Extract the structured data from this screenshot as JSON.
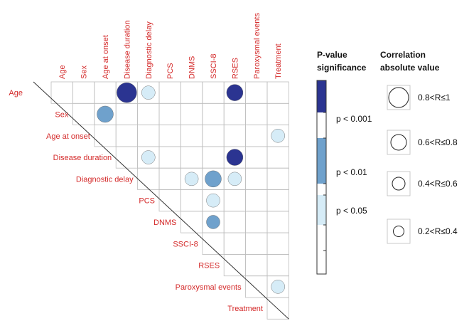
{
  "chart_data": {
    "type": "heatmap",
    "variables": [
      "Age",
      "Sex",
      "Age at onset",
      "Disease duration",
      "Diagnostic delay",
      "PCS",
      "DNMS",
      "SSCI-8",
      "RSES",
      "Paroxysmal events",
      "Treatment"
    ],
    "cells": [
      {
        "row": "Age",
        "col": "Disease duration",
        "significance": "p < 0.001",
        "correlation": "0.8<R≤1"
      },
      {
        "row": "Age",
        "col": "Diagnostic delay",
        "significance": "p < 0.05",
        "correlation": "0.4<R≤0.6"
      },
      {
        "row": "Age",
        "col": "RSES",
        "significance": "p < 0.001",
        "correlation": "0.6<R≤0.8"
      },
      {
        "row": "Sex",
        "col": "Age at onset",
        "significance": "p < 0.01",
        "correlation": "0.6<R≤0.8"
      },
      {
        "row": "Age at onset",
        "col": "Treatment",
        "significance": "p < 0.05",
        "correlation": "0.4<R≤0.6"
      },
      {
        "row": "Disease duration",
        "col": "Diagnostic delay",
        "significance": "p < 0.05",
        "correlation": "0.4<R≤0.6"
      },
      {
        "row": "Disease duration",
        "col": "RSES",
        "significance": "p < 0.001",
        "correlation": "0.6<R≤0.8"
      },
      {
        "row": "Diagnostic delay",
        "col": "DNMS",
        "significance": "p < 0.05",
        "correlation": "0.4<R≤0.6"
      },
      {
        "row": "Diagnostic delay",
        "col": "SSCI-8",
        "significance": "p < 0.01",
        "correlation": "0.6<R≤0.8"
      },
      {
        "row": "Diagnostic delay",
        "col": "RSES",
        "significance": "p < 0.05",
        "correlation": "0.4<R≤0.6"
      },
      {
        "row": "PCS",
        "col": "SSCI-8",
        "significance": "p < 0.05",
        "correlation": "0.4<R≤0.6"
      },
      {
        "row": "DNMS",
        "col": "SSCI-8",
        "significance": "p < 0.01",
        "correlation": "0.4<R≤0.6"
      },
      {
        "row": "Paroxysmal events",
        "col": "Treatment",
        "significance": "p < 0.05",
        "correlation": "0.4<R≤0.6"
      }
    ],
    "significance_legend": {
      "title_line1": "P-value",
      "title_line2": "significance",
      "levels": [
        {
          "label": "p < 0.001",
          "color": "#2b3491"
        },
        {
          "label": "p < 0.01",
          "color": "#6fa1cc"
        },
        {
          "label": "p < 0.05",
          "color": "#d6ecf7"
        }
      ]
    },
    "correlation_legend": {
      "title_line1": "Correlation",
      "title_line2": "absolute value",
      "levels": [
        "0.8<R≤1",
        "0.6<R≤0.8",
        "0.4<R≤0.6",
        "0.2<R≤0.4"
      ]
    },
    "colors": {
      "label": "#d42a2a",
      "grid": "#bdbdbd",
      "diagonal": "#333333"
    }
  }
}
